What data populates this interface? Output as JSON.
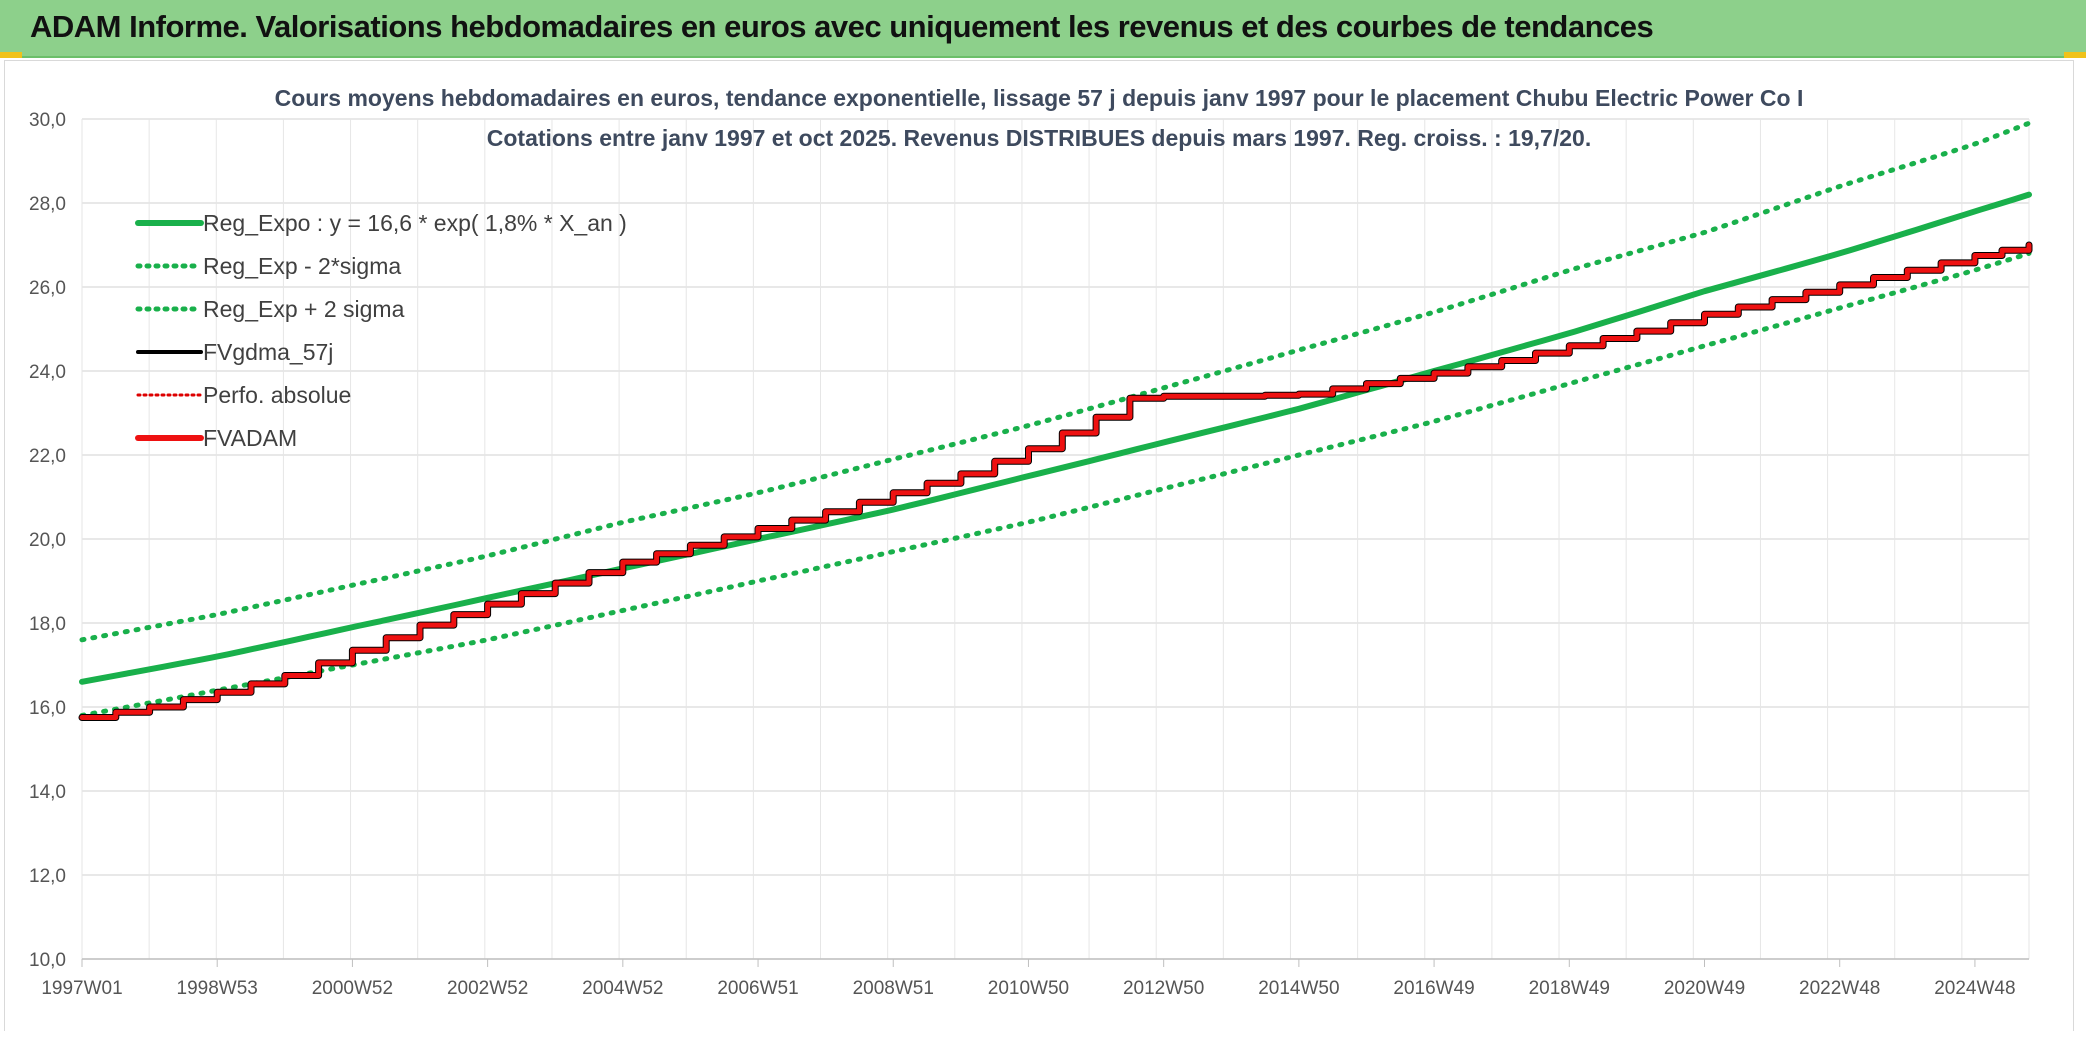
{
  "banner": {
    "title": "ADAM Informe. Valorisations hebdomadaires en euros avec uniquement les revenus et des courbes de tendances"
  },
  "colors": {
    "banner": "#8dd08b",
    "trend": "#19b04b",
    "fv57": "#000000",
    "fvadam": "#ee1111",
    "perfo": "#dd0000",
    "grid": "#d9d9d9",
    "axis_text": "#555555",
    "title_text": "#3e4a5e"
  },
  "chart_data": {
    "type": "line",
    "title": "Cours moyens hebdomadaires en euros, tendance exponentielle, lissage 57 j depuis janv 1997 pour le placement Chubu Electric Power Co I",
    "subtitle": "Cotations entre janv 1997 et oct 2025. Revenus DISTRIBUES depuis mars 1997. Reg. croiss. : 19,7/20.",
    "xlabel": "",
    "ylabel": "",
    "ylim": [
      10,
      30
    ],
    "y_ticks": [
      "10,0",
      "12,0",
      "14,0",
      "16,0",
      "18,0",
      "20,0",
      "22,0",
      "24,0",
      "26,0",
      "28,0",
      "30,0"
    ],
    "x_ticks": [
      "1997W01",
      "1998W53",
      "2000W52",
      "2002W52",
      "2004W52",
      "2006W51",
      "2008W51",
      "2010W50",
      "2012W50",
      "2014W50",
      "2016W49",
      "2018W49",
      "2020W49",
      "2022W48",
      "2024W48"
    ],
    "grid": true,
    "legend_position": "top-left",
    "legend": [
      {
        "label": "Reg_Expo : y = 16,6 * exp( 1,8% *  X_an )",
        "style": "solid-thick",
        "color": "#19b04b"
      },
      {
        "label": "Reg_Exp - 2*sigma",
        "style": "dotted",
        "color": "#19b04b"
      },
      {
        "label": "Reg_Exp + 2 sigma",
        "style": "dotted",
        "color": "#19b04b"
      },
      {
        "label": "FVgdma_57j",
        "style": "solid",
        "color": "#000000"
      },
      {
        "label": "Perfo. absolue",
        "style": "dotted-thin",
        "color": "#dd0000"
      },
      {
        "label": "FVADAM",
        "style": "solid-thick",
        "color": "#ee1111"
      }
    ],
    "series": [
      {
        "name": "Reg_Expo : y = 16,6 * exp( 1,8% *  X_an )",
        "x": [
          0,
          2,
          4,
          6,
          8,
          10,
          12,
          14,
          16,
          18,
          20,
          22,
          24,
          26,
          28,
          28.8
        ],
        "values": [
          16.6,
          17.2,
          17.9,
          18.6,
          19.3,
          20.0,
          20.7,
          21.5,
          22.3,
          23.1,
          24.0,
          24.9,
          25.9,
          26.8,
          27.8,
          28.2
        ]
      },
      {
        "name": "Reg_Exp - 2*sigma",
        "x": [
          0,
          2,
          4,
          6,
          8,
          10,
          12,
          14,
          16,
          18,
          20,
          22,
          24,
          26,
          28,
          28.8
        ],
        "values": [
          15.8,
          16.4,
          17.0,
          17.6,
          18.3,
          19.0,
          19.7,
          20.4,
          21.2,
          22.0,
          22.8,
          23.7,
          24.6,
          25.5,
          26.4,
          26.8
        ]
      },
      {
        "name": "Reg_Exp + 2 sigma",
        "x": [
          0,
          2,
          4,
          6,
          8,
          10,
          12,
          14,
          16,
          18,
          20,
          22,
          24,
          26,
          28,
          28.8
        ],
        "values": [
          17.6,
          18.2,
          18.9,
          19.6,
          20.4,
          21.1,
          21.9,
          22.7,
          23.6,
          24.5,
          25.4,
          26.4,
          27.3,
          28.4,
          29.4,
          29.9
        ]
      },
      {
        "name": "FVgdma_57j",
        "x": [
          0,
          1,
          2,
          3,
          4,
          5,
          6,
          7,
          8,
          9,
          10,
          11,
          12,
          13,
          14,
          15,
          15.5,
          16,
          17,
          18,
          19,
          20,
          21,
          22,
          23,
          24,
          25,
          26,
          27,
          28,
          28.8
        ],
        "values": [
          15.75,
          16.0,
          16.35,
          16.75,
          17.35,
          17.95,
          18.45,
          18.95,
          19.45,
          19.85,
          20.25,
          20.65,
          21.1,
          21.55,
          22.15,
          22.9,
          23.35,
          23.4,
          23.4,
          23.45,
          23.7,
          23.95,
          24.25,
          24.6,
          24.95,
          25.35,
          25.7,
          26.05,
          26.4,
          26.75,
          27.0
        ]
      },
      {
        "name": "Perfo. absolue",
        "x": [
          0,
          1,
          2,
          3,
          4,
          5,
          6,
          7,
          8,
          9,
          10,
          11,
          12,
          13,
          14,
          15,
          15.5,
          16,
          17,
          18,
          19,
          20,
          21,
          22,
          23,
          24,
          25,
          26,
          27,
          28,
          28.8
        ],
        "values": [
          15.75,
          16.0,
          16.35,
          16.75,
          17.35,
          17.95,
          18.45,
          18.95,
          19.45,
          19.85,
          20.25,
          20.65,
          21.1,
          21.55,
          22.15,
          22.9,
          23.35,
          23.4,
          23.4,
          23.45,
          23.7,
          23.95,
          24.25,
          24.6,
          24.95,
          25.35,
          25.7,
          26.05,
          26.4,
          26.75,
          27.0
        ]
      },
      {
        "name": "FVADAM",
        "x": [
          0,
          1,
          2,
          3,
          4,
          5,
          6,
          7,
          8,
          9,
          10,
          11,
          12,
          13,
          14,
          15,
          15.5,
          16,
          17,
          18,
          19,
          20,
          21,
          22,
          23,
          24,
          25,
          26,
          27,
          28,
          28.8
        ],
        "values": [
          15.75,
          16.0,
          16.35,
          16.75,
          17.35,
          17.95,
          18.45,
          18.95,
          19.45,
          19.85,
          20.25,
          20.65,
          21.1,
          21.55,
          22.15,
          22.9,
          23.35,
          23.4,
          23.4,
          23.45,
          23.7,
          23.95,
          24.25,
          24.6,
          24.95,
          25.35,
          25.7,
          26.05,
          26.4,
          26.75,
          27.0
        ]
      }
    ]
  }
}
